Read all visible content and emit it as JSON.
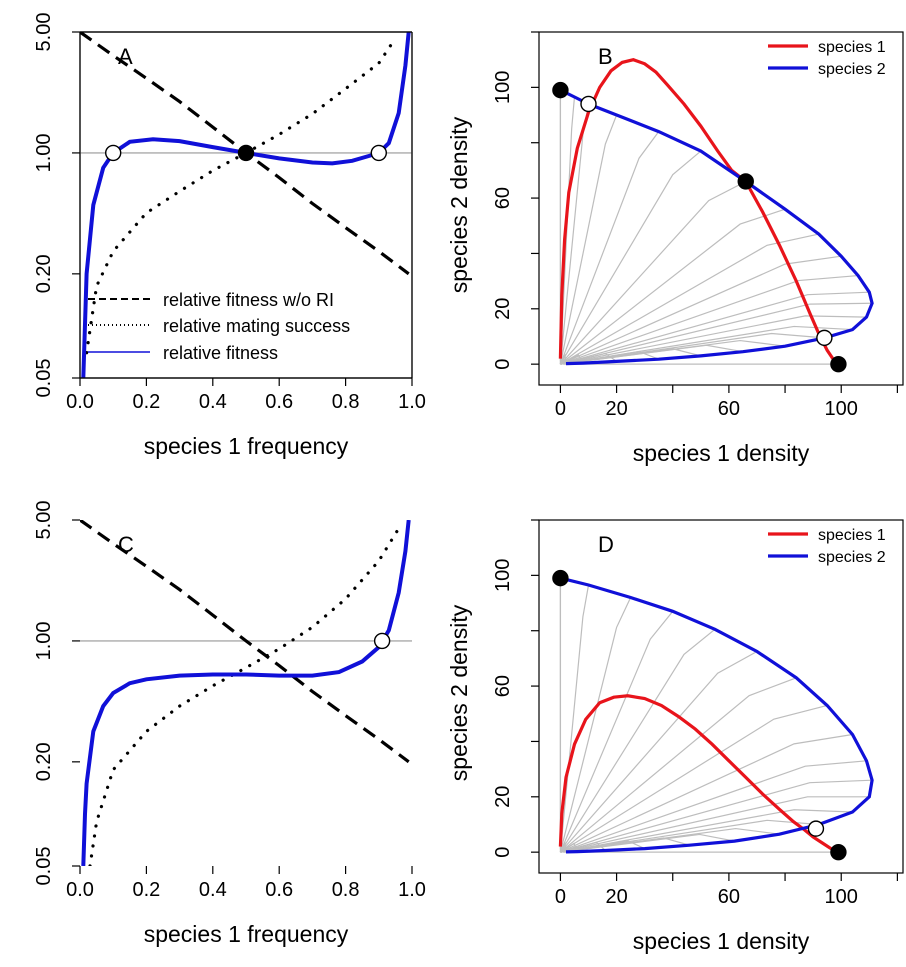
{
  "chart_data": [
    {
      "panel": "A",
      "type": "line",
      "xlabel": "species 1 frequency",
      "ylabel": "",
      "xlim": [
        0,
        1
      ],
      "ylim": [
        0.05,
        5
      ],
      "y_scale": "log",
      "x_ticks": [
        "0.0",
        "0.2",
        "0.4",
        "0.6",
        "0.8",
        "1.0"
      ],
      "y_ticks": [
        "0.05",
        "0.20",
        "1.00",
        "5.00"
      ],
      "reference_line_y": 1,
      "series": [
        {
          "name": "relative fitness w/o RI",
          "style": "dashed",
          "color": "#000000",
          "x": [
            0.0,
            0.1,
            0.2,
            0.3,
            0.4,
            0.5,
            0.6,
            0.7,
            0.8,
            0.9,
            0.99
          ],
          "y": [
            5.0,
            3.65,
            2.7,
            1.98,
            1.41,
            1.0,
            0.72,
            0.51,
            0.37,
            0.27,
            0.2
          ]
        },
        {
          "name": "relative mating success",
          "style": "dotted",
          "color": "#000000",
          "x": [
            0.02,
            0.05,
            0.1,
            0.2,
            0.3,
            0.4,
            0.5,
            0.6,
            0.7,
            0.8,
            0.9,
            0.95
          ],
          "y": [
            0.07,
            0.17,
            0.27,
            0.45,
            0.6,
            0.79,
            1.0,
            1.28,
            1.68,
            2.35,
            3.3,
            4.6
          ]
        },
        {
          "name": "relative fitness",
          "style": "solid",
          "color": "#1010d8",
          "x": [
            0.01,
            0.02,
            0.04,
            0.07,
            0.1,
            0.15,
            0.22,
            0.3,
            0.4,
            0.5,
            0.6,
            0.7,
            0.76,
            0.82,
            0.87,
            0.9,
            0.93,
            0.96,
            0.98,
            0.99
          ],
          "y": [
            0.05,
            0.2,
            0.5,
            0.82,
            1.0,
            1.16,
            1.2,
            1.17,
            1.08,
            1.0,
            0.93,
            0.88,
            0.87,
            0.9,
            0.96,
            1.0,
            1.14,
            1.7,
            3.2,
            5.0
          ]
        }
      ],
      "points": [
        {
          "x": 0.1,
          "y": 1.0,
          "fill": "open"
        },
        {
          "x": 0.5,
          "y": 1.0,
          "fill": "filled"
        },
        {
          "x": 0.9,
          "y": 1.0,
          "fill": "open"
        }
      ],
      "legend": "bottom"
    },
    {
      "panel": "B",
      "type": "line",
      "xlabel": "species 1 density",
      "ylabel": "species 2 density",
      "xlim": [
        -3,
        122
      ],
      "ylim": [
        -5,
        120
      ],
      "x_ticks": [
        "0",
        "20",
        "60",
        "100"
      ],
      "y_ticks": [
        "0",
        "20",
        "60",
        "100"
      ],
      "series": [
        {
          "name": "species 1",
          "color": "#e8141b",
          "x": [
            0,
            0.5,
            1.5,
            3,
            6,
            10,
            14,
            18,
            22,
            26,
            30,
            34,
            38,
            44,
            50,
            56,
            61,
            66,
            72,
            78,
            84,
            89,
            92,
            95,
            97,
            99
          ],
          "y": [
            2,
            25,
            45,
            62,
            78,
            91,
            100,
            106,
            109,
            110,
            108.5,
            105.5,
            101,
            94,
            86,
            77,
            70,
            66,
            55,
            43,
            30,
            18,
            11,
            5,
            2,
            0
          ]
        },
        {
          "name": "species 2",
          "color": "#1010d8",
          "x": [
            0,
            5,
            10,
            20,
            35,
            50,
            66,
            80,
            92,
            100,
            106,
            110,
            111,
            109,
            104,
            94,
            80,
            65,
            50,
            35,
            20,
            8,
            2
          ],
          "y": [
            99,
            96.5,
            94,
            90,
            84,
            77,
            66,
            56,
            47,
            39,
            32,
            26,
            22,
            17,
            12.5,
            9.5,
            6.5,
            4.5,
            3,
            1.8,
            1,
            0.4,
            0.2
          ]
        }
      ],
      "points": [
        {
          "x": 0,
          "y": 99,
          "fill": "filled"
        },
        {
          "x": 10,
          "y": 94,
          "fill": "open"
        },
        {
          "x": 66,
          "y": 66,
          "fill": "filled"
        },
        {
          "x": 94,
          "y": 9.5,
          "fill": "open"
        },
        {
          "x": 99,
          "y": 0,
          "fill": "filled"
        }
      ],
      "trajectories": "grey",
      "legend": "top-right"
    },
    {
      "panel": "C",
      "type": "line",
      "xlabel": "species 1 frequency",
      "ylabel": "",
      "xlim": [
        0,
        1
      ],
      "ylim": [
        0.05,
        5
      ],
      "y_scale": "log",
      "x_ticks": [
        "0.0",
        "0.2",
        "0.4",
        "0.6",
        "0.8",
        "1.0"
      ],
      "y_ticks": [
        "0.05",
        "0.20",
        "1.00",
        "5.00"
      ],
      "reference_line_y": 1,
      "series": [
        {
          "name": "relative fitness w/o RI",
          "style": "dashed",
          "color": "#000000",
          "x": [
            0.0,
            0.1,
            0.2,
            0.3,
            0.4,
            0.5,
            0.6,
            0.7,
            0.8,
            0.9,
            0.99
          ],
          "y": [
            5.0,
            3.65,
            2.7,
            1.98,
            1.41,
            1.0,
            0.72,
            0.51,
            0.37,
            0.27,
            0.2
          ]
        },
        {
          "name": "relative mating success",
          "style": "dotted",
          "color": "#000000",
          "x": [
            0.03,
            0.05,
            0.1,
            0.2,
            0.3,
            0.4,
            0.5,
            0.6,
            0.7,
            0.8,
            0.9,
            0.97
          ],
          "y": [
            0.05,
            0.09,
            0.18,
            0.3,
            0.42,
            0.55,
            0.7,
            0.9,
            1.2,
            1.75,
            2.9,
            4.8
          ]
        },
        {
          "name": "relative fitness",
          "style": "solid",
          "color": "#1010d8",
          "x": [
            0.01,
            0.015,
            0.02,
            0.04,
            0.07,
            0.1,
            0.15,
            0.2,
            0.3,
            0.4,
            0.5,
            0.6,
            0.7,
            0.78,
            0.85,
            0.9,
            0.93,
            0.96,
            0.98,
            0.99
          ],
          "y": [
            0.05,
            0.1,
            0.15,
            0.3,
            0.42,
            0.5,
            0.57,
            0.6,
            0.63,
            0.64,
            0.64,
            0.63,
            0.63,
            0.66,
            0.76,
            0.92,
            1.15,
            1.9,
            3.3,
            5.0
          ]
        }
      ],
      "points": [
        {
          "x": 0.91,
          "y": 1.0,
          "fill": "open"
        }
      ]
    },
    {
      "panel": "D",
      "type": "line",
      "xlabel": "species 1 density",
      "ylabel": "species 2 density",
      "xlim": [
        -3,
        122
      ],
      "ylim": [
        -5,
        120
      ],
      "x_ticks": [
        "0",
        "20",
        "60",
        "100"
      ],
      "y_ticks": [
        "0",
        "20",
        "60",
        "100"
      ],
      "series": [
        {
          "name": "species 1",
          "color": "#e8141b",
          "x": [
            0,
            0.5,
            2,
            5,
            9,
            14,
            19,
            24,
            30,
            36,
            42,
            48,
            54,
            60,
            66,
            72,
            78,
            83,
            87,
            90,
            93,
            96,
            99
          ],
          "y": [
            2,
            14,
            27,
            39,
            48,
            54,
            56,
            56.5,
            55.5,
            53,
            49,
            44.5,
            39,
            33,
            27,
            21,
            15.5,
            11,
            8,
            5.5,
            3.5,
            1.5,
            0
          ]
        },
        {
          "name": "species 2",
          "color": "#1010d8",
          "x": [
            0,
            10,
            25,
            40,
            55,
            70,
            84,
            95,
            104,
            109,
            111,
            110,
            104,
            92,
            78,
            62,
            46,
            30,
            16,
            6,
            2
          ],
          "y": [
            99,
            96.5,
            92,
            87,
            80.5,
            72.5,
            63,
            53,
            42.5,
            33,
            26,
            20,
            14.5,
            10,
            6.5,
            4,
            2.5,
            1.3,
            0.6,
            0.2,
            0.1
          ]
        }
      ],
      "points": [
        {
          "x": 0,
          "y": 99,
          "fill": "filled"
        },
        {
          "x": 91,
          "y": 8.5,
          "fill": "open"
        },
        {
          "x": 99,
          "y": 0,
          "fill": "filled"
        }
      ],
      "trajectories": "grey",
      "legend": "top-right"
    }
  ],
  "colors": {
    "species1": "#e8141b",
    "species2": "#1010d8",
    "trajectory": "#bdbdbd",
    "reference": "#aaaaaa"
  }
}
